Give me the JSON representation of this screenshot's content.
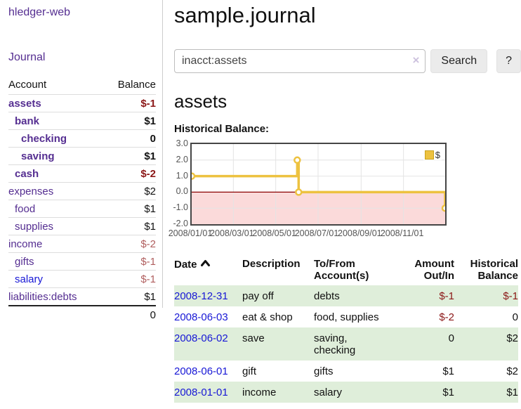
{
  "app": {
    "title": "hledger-web"
  },
  "sidebar": {
    "journal_link": "Journal",
    "accounts": {
      "col_account": "Account",
      "col_balance": "Balance",
      "rows": [
        {
          "name": "assets",
          "balance": "$-1"
        },
        {
          "name": "bank",
          "balance": "$1"
        },
        {
          "name": "checking",
          "balance": "0"
        },
        {
          "name": "saving",
          "balance": "$1"
        },
        {
          "name": "cash",
          "balance": "$-2"
        },
        {
          "name": "expenses",
          "balance": "$2"
        },
        {
          "name": "food",
          "balance": "$1"
        },
        {
          "name": "supplies",
          "balance": "$1"
        },
        {
          "name": "income",
          "balance": "$-2"
        },
        {
          "name": "gifts",
          "balance": "$-1"
        },
        {
          "name": "salary",
          "balance": "$-1"
        },
        {
          "name": "liabilities:debts",
          "balance": "$1"
        }
      ],
      "total": "0"
    }
  },
  "header": {
    "title": "sample.journal"
  },
  "search": {
    "value": "inacct:assets",
    "button": "Search",
    "help_button": "?",
    "clear_icon": "×"
  },
  "account_page": {
    "title": "assets",
    "chart_label": "Historical Balance:"
  },
  "chart_data": {
    "type": "line",
    "title": "Historical Balance",
    "step": true,
    "series": [
      {
        "name": "$",
        "points": [
          [
            "2008-01-01",
            1
          ],
          [
            "2008-06-01",
            2
          ],
          [
            "2008-06-03",
            0
          ],
          [
            "2008-12-31",
            -1
          ]
        ],
        "color": "#edc240"
      }
    ],
    "xlabel": "",
    "ylabel": "",
    "ylim": [
      -2,
      3
    ],
    "yticks": [
      3,
      2,
      1,
      0,
      -1,
      -2
    ],
    "ytick_labels": [
      "3.0",
      "2.0",
      "1.0",
      "0.0",
      "-1.0",
      "-2.0"
    ],
    "xlim": [
      "2008-01-01",
      "2008-12-31"
    ],
    "xticks": [
      "2008-01-01",
      "2008-03-01",
      "2008-05-01",
      "2008-07-01",
      "2008-09-01",
      "2008-11-01"
    ],
    "xtick_labels": [
      "2008/01/01",
      "2008/03/01",
      "2008/05/01",
      "2008/07/01",
      "2008/09/01",
      "2008/11/01"
    ],
    "grid": true,
    "negative_region_shaded": true,
    "legend": {
      "position": "top-right",
      "label": "$"
    }
  },
  "register": {
    "headers": {
      "date": "Date",
      "description": "Description",
      "account": "To/From Account(s)",
      "amount": "Amount Out/In",
      "balance": "Historical Balance"
    },
    "rows": [
      {
        "date": "2008-12-31",
        "description": "pay off",
        "accounts": "debts",
        "amount": "$-1",
        "balance": "$-1"
      },
      {
        "date": "2008-06-03",
        "description": "eat & shop",
        "accounts": "food, supplies",
        "amount": "$-2",
        "balance": "0"
      },
      {
        "date": "2008-06-02",
        "description": "save",
        "accounts": "saving, checking",
        "amount": "0",
        "balance": "$2"
      },
      {
        "date": "2008-06-01",
        "description": "gift",
        "accounts": "gifts",
        "amount": "$1",
        "balance": "$2"
      },
      {
        "date": "2008-01-01",
        "description": "income",
        "accounts": "salary",
        "amount": "$1",
        "balance": "$1"
      }
    ]
  },
  "colors": {
    "purple": "#552e91",
    "blue": "#1717d6",
    "neg_strong": "#8b1717",
    "neg_muted": "#b05e5e",
    "row_green": "#dfeeda",
    "gold": "#edc240",
    "gold_border": "#c9a21c",
    "pink": "#fbdada",
    "zero_line": "#8b0000",
    "grid": "#e4e4e4"
  }
}
